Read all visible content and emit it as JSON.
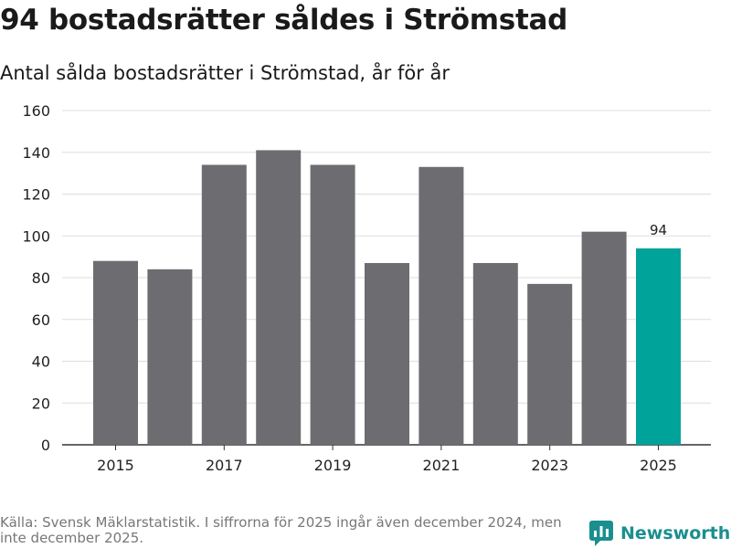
{
  "title": "94 bostadsrätter såldes i Strömstad",
  "subtitle": "Antal sålda bostadsrätter i Strömstad, år för år",
  "source": "Källa: Svensk Mäklarstatistik. I siffrorna för 2025 ingår även december 2024, men inte december 2025.",
  "brand": "Newsworthy",
  "colors": {
    "bar": "#6d6c71",
    "highlight": "#00a39a",
    "grid": "#dddddd",
    "axis": "#333333",
    "brand": "#1a8f8f"
  },
  "chart_data": {
    "type": "bar",
    "title": "94 bostadsrätter såldes i Strömstad",
    "subtitle": "Antal sålda bostadsrätter i Strömstad, år för år",
    "categories": [
      "2015",
      "2016",
      "2017",
      "2018",
      "2019",
      "2020",
      "2021",
      "2022",
      "2023",
      "2024",
      "2025"
    ],
    "values": [
      88,
      84,
      134,
      141,
      134,
      87,
      133,
      87,
      77,
      102,
      94
    ],
    "x_tick_labels": [
      "2015",
      "2017",
      "2019",
      "2021",
      "2023",
      "2025"
    ],
    "y_ticks": [
      "0",
      "20",
      "40",
      "60",
      "80",
      "100",
      "120",
      "140",
      "160"
    ],
    "ylim": [
      0,
      160
    ],
    "xlabel": "",
    "ylabel": "",
    "grid": true,
    "highlight_category": "2025",
    "annotation": {
      "category": "2025",
      "text": "94"
    }
  }
}
